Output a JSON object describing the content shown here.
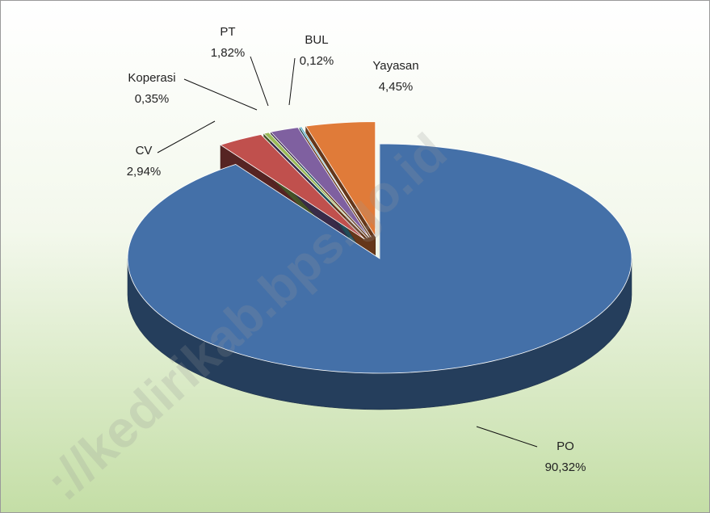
{
  "chart_data": {
    "type": "pie",
    "categories": [
      "PO",
      "CV",
      "Koperasi",
      "PT",
      "BUL",
      "Yayasan"
    ],
    "values": [
      90.32,
      2.94,
      0.35,
      1.82,
      0.12,
      4.45
    ],
    "value_labels": [
      "90,32%",
      "2,94%",
      "0,35%",
      "1,82%",
      "0,12%",
      "4,45%"
    ],
    "colors": [
      "#4470a8",
      "#c0504d",
      "#9bbb59",
      "#7f60a0",
      "#4bacc6",
      "#e07b39"
    ],
    "watermark": "://kedirikab.bps.go.id"
  }
}
